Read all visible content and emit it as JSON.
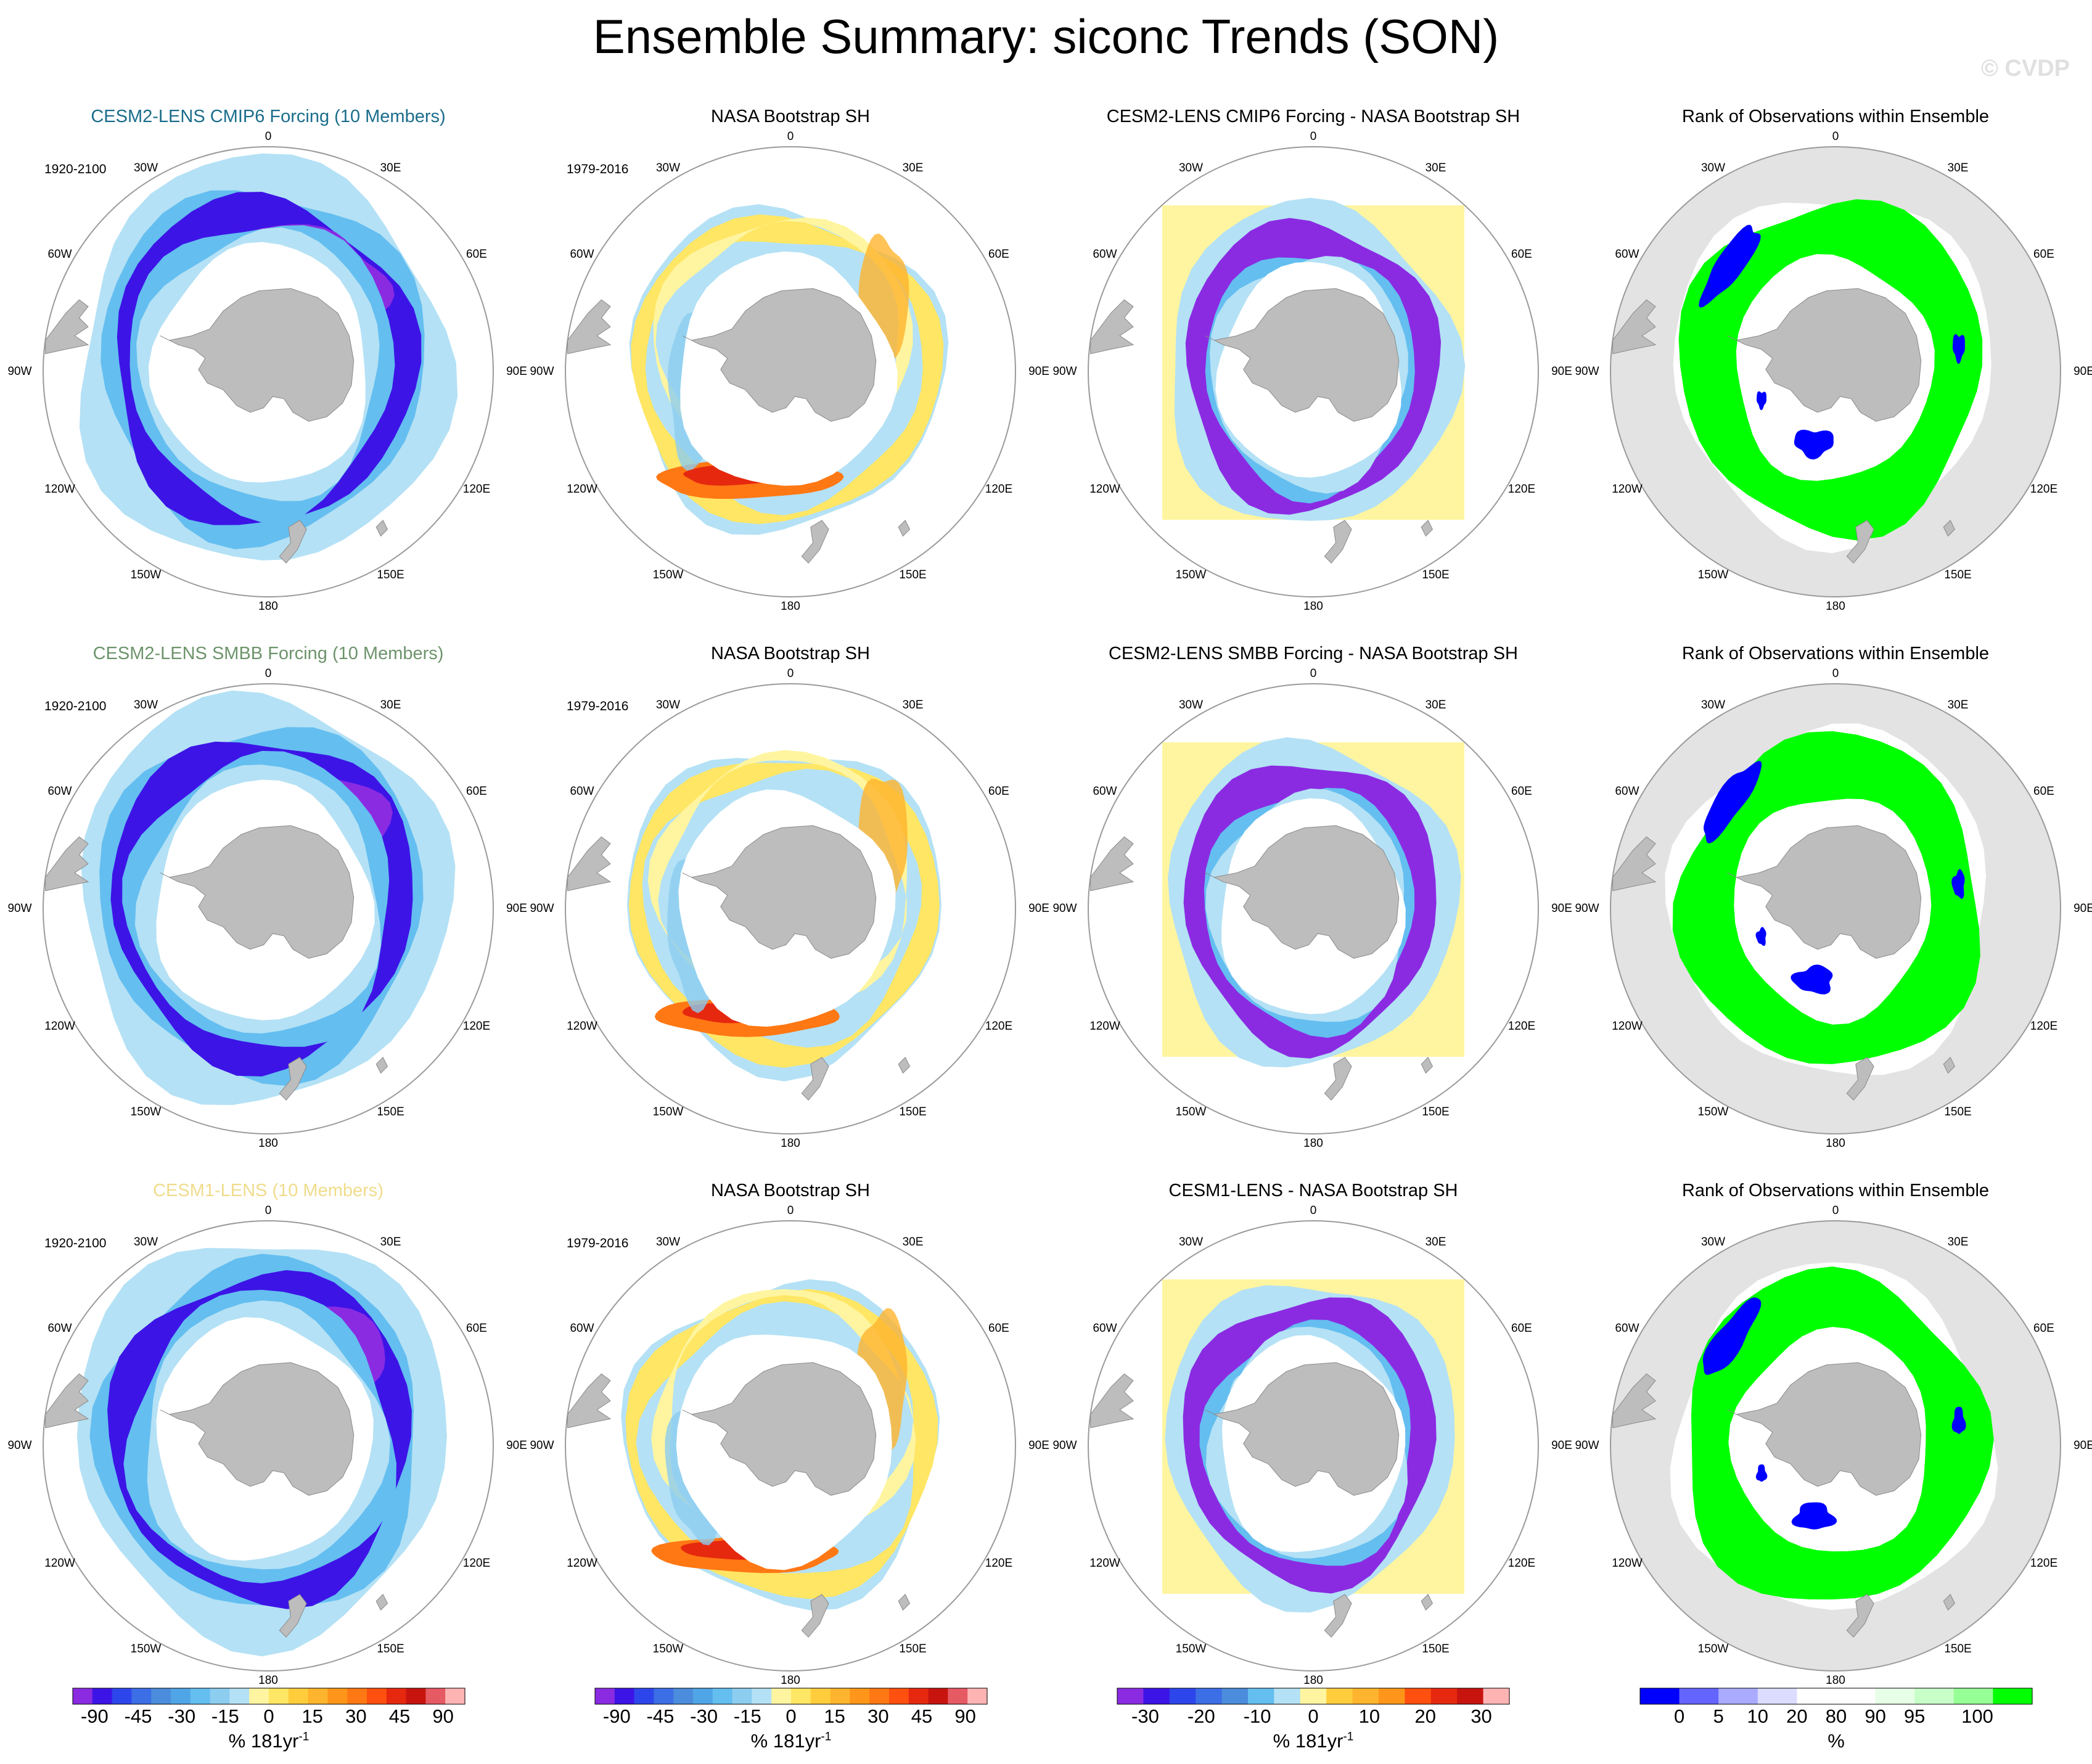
{
  "page": {
    "title": "Ensemble Summary: siconc Trends (SON)",
    "watermark": "© CVDP"
  },
  "colors": {
    "land": "#bdbdbd",
    "land_edge": "#8a8a8a",
    "sea_bg_rank": "#e3e3e3",
    "outline": "#9a9a9a",
    "row_title_colors": [
      "#1b6d8c",
      "#6d946b",
      "#f0dc8c"
    ]
  },
  "longitude_labels": [
    "0",
    "30E",
    "60E",
    "90E",
    "120E",
    "150E",
    "180",
    "150W",
    "120W",
    "90W",
    "60W",
    "30W"
  ],
  "rows": [
    {
      "model_title": "CESM2-LENS CMIP6 Forcing (10 Members)",
      "model_period": "1920-2100",
      "obs_title": "NASA Bootstrap SH",
      "obs_period": "1979-2016",
      "diff_title": "CESM2-LENS CMIP6 Forcing - NASA Bootstrap SH",
      "rank_title": "Rank of Observations within Ensemble"
    },
    {
      "model_title": "CESM2-LENS SMBB Forcing (10 Members)",
      "model_period": "1920-2100",
      "obs_title": "NASA Bootstrap SH",
      "obs_period": "1979-2016",
      "diff_title": "CESM2-LENS SMBB Forcing - NASA Bootstrap SH",
      "rank_title": "Rank of Observations within Ensemble"
    },
    {
      "model_title": "CESM1-LENS (10 Members)",
      "model_period": "1920-2100",
      "obs_title": "NASA Bootstrap SH",
      "obs_period": "1979-2016",
      "diff_title": "CESM1-LENS - NASA Bootstrap SH",
      "rank_title": "Rank of Observations within Ensemble"
    }
  ],
  "colorbars": [
    {
      "ticks": [
        "-90",
        "-45",
        "-30",
        "-15",
        "0",
        "15",
        "30",
        "45",
        "90"
      ],
      "unit": "% 181yr",
      "unit_sup": "-1",
      "colors": [
        "#8a2be2",
        "#3c14e6",
        "#2d46eb",
        "#3c6ee6",
        "#4b8cdc",
        "#50a5e6",
        "#64bef0",
        "#8ccdf0",
        "#b4e1f5",
        "#fff5a0",
        "#ffe664",
        "#ffcd3c",
        "#ffb42d",
        "#ff9619",
        "#ff7814",
        "#ff500f",
        "#e6280f",
        "#c8140f",
        "#e65a64",
        "#ffb4b4"
      ]
    },
    {
      "ticks": [
        "-90",
        "-45",
        "-30",
        "-15",
        "0",
        "15",
        "30",
        "45",
        "90"
      ],
      "unit": "% 181yr",
      "unit_sup": "-1",
      "colors": [
        "#8a2be2",
        "#3c14e6",
        "#2d46eb",
        "#3c6ee6",
        "#4b8cdc",
        "#50a5e6",
        "#64bef0",
        "#8ccdf0",
        "#b4e1f5",
        "#fff5a0",
        "#ffe664",
        "#ffcd3c",
        "#ffb42d",
        "#ff9619",
        "#ff7814",
        "#ff500f",
        "#e6280f",
        "#c8140f",
        "#e65a64",
        "#ffb4b4"
      ]
    },
    {
      "ticks": [
        "-30",
        "-20",
        "-10",
        "0",
        "10",
        "20",
        "30"
      ],
      "unit": "% 181yr",
      "unit_sup": "-1",
      "colors": [
        "#8a2be2",
        "#3c14e6",
        "#2d46eb",
        "#3c6ee6",
        "#4b8cdc",
        "#64bef0",
        "#b4e1f5",
        "#fff5a0",
        "#ffcd3c",
        "#ffb42d",
        "#ff9619",
        "#ff500f",
        "#e6280f",
        "#c8140f",
        "#ffb4b4"
      ]
    },
    {
      "ticks": [
        "0",
        "5",
        "10",
        "20",
        "80",
        "90",
        "95",
        "100"
      ],
      "unit": "%",
      "unit_sup": "",
      "colors": [
        "#0000ff",
        "#6464ff",
        "#aaaaff",
        "#dcdcff",
        "#ffffff",
        "#ffffff",
        "#e6ffe6",
        "#c8ffc8",
        "#96ff96",
        "#00ff00"
      ]
    }
  ]
}
